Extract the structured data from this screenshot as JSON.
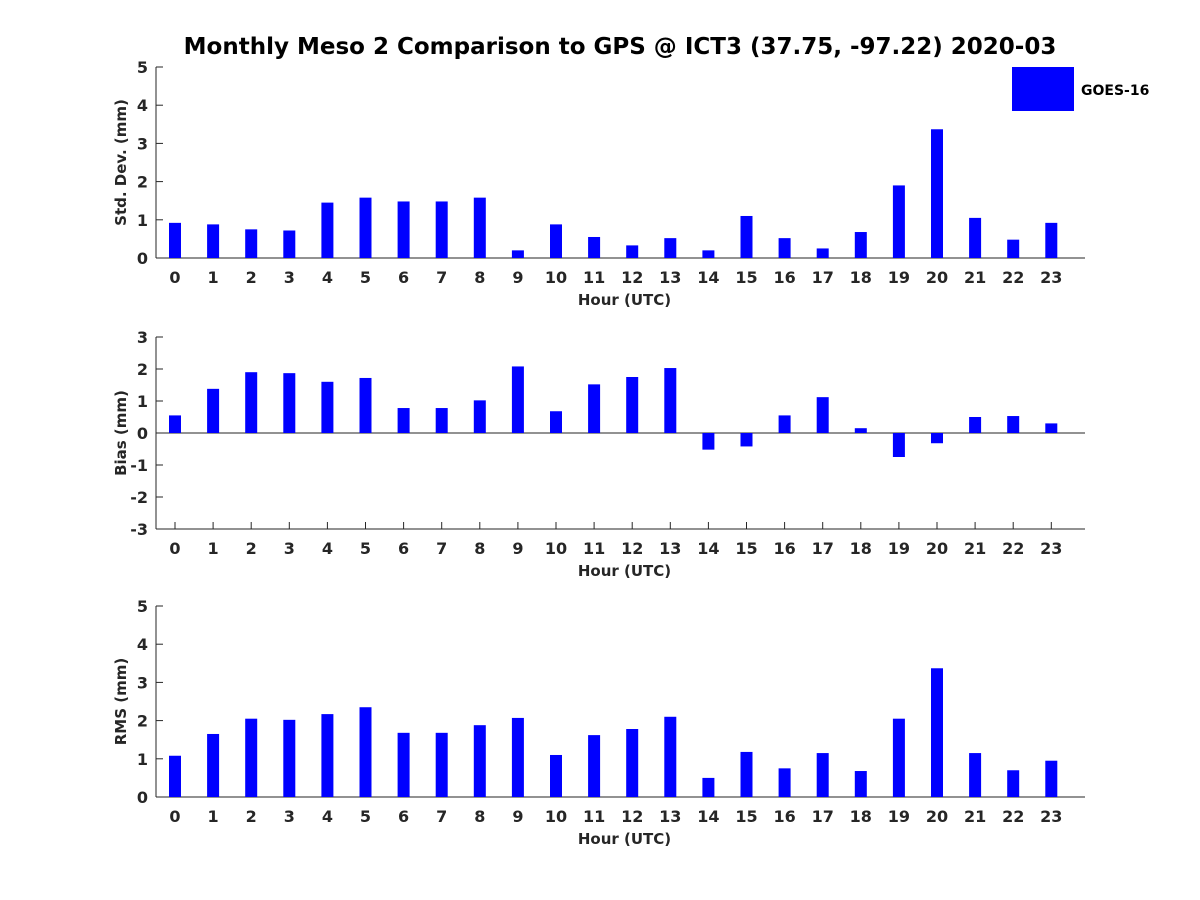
{
  "figure": {
    "title": "Monthly Meso 2 Comparison to GPS @ ICT3 (37.75, -97.22) 2020-03"
  },
  "legend": {
    "label": "GOES-16",
    "color": "#0000ff",
    "placement": "top-right"
  },
  "chart_data": [
    {
      "type": "bar",
      "name": "std-dev",
      "categories": [
        "0",
        "1",
        "2",
        "3",
        "4",
        "5",
        "6",
        "7",
        "8",
        "9",
        "10",
        "11",
        "12",
        "13",
        "14",
        "15",
        "16",
        "17",
        "18",
        "19",
        "20",
        "21",
        "22",
        "23"
      ],
      "series": [
        {
          "name": "GOES-16",
          "color": "#0000ff",
          "values": [
            0.92,
            0.88,
            0.75,
            0.72,
            1.45,
            1.58,
            1.48,
            1.48,
            1.58,
            0.2,
            0.88,
            0.55,
            0.33,
            0.52,
            0.2,
            1.1,
            0.52,
            0.25,
            0.68,
            1.9,
            3.37,
            1.05,
            0.48,
            0.92
          ]
        }
      ],
      "ylim": [
        0,
        5
      ],
      "yticks": [
        "0",
        "1",
        "2",
        "3",
        "4",
        "5"
      ],
      "xlabel": "Hour (UTC)",
      "ylabel": "Std. Dev. (mm)",
      "zero_line": false,
      "grid": false
    },
    {
      "type": "bar",
      "name": "bias",
      "categories": [
        "0",
        "1",
        "2",
        "3",
        "4",
        "5",
        "6",
        "7",
        "8",
        "9",
        "10",
        "11",
        "12",
        "13",
        "14",
        "15",
        "16",
        "17",
        "18",
        "19",
        "20",
        "21",
        "22",
        "23"
      ],
      "series": [
        {
          "name": "GOES-16",
          "color": "#0000ff",
          "values": [
            0.55,
            1.38,
            1.9,
            1.87,
            1.6,
            1.72,
            0.78,
            0.78,
            1.02,
            2.08,
            0.68,
            1.52,
            1.75,
            2.03,
            -0.52,
            -0.42,
            0.55,
            1.12,
            0.15,
            -0.75,
            -0.32,
            0.5,
            0.53,
            0.3
          ]
        }
      ],
      "ylim": [
        -3,
        3
      ],
      "yticks": [
        "-3",
        "-2",
        "-1",
        "0",
        "1",
        "2",
        "3"
      ],
      "xlabel": "Hour (UTC)",
      "ylabel": "Bias (mm)",
      "zero_line": true,
      "grid": false
    },
    {
      "type": "bar",
      "name": "rms",
      "categories": [
        "0",
        "1",
        "2",
        "3",
        "4",
        "5",
        "6",
        "7",
        "8",
        "9",
        "10",
        "11",
        "12",
        "13",
        "14",
        "15",
        "16",
        "17",
        "18",
        "19",
        "20",
        "21",
        "22",
        "23"
      ],
      "series": [
        {
          "name": "GOES-16",
          "color": "#0000ff",
          "values": [
            1.08,
            1.65,
            2.05,
            2.02,
            2.17,
            2.35,
            1.68,
            1.68,
            1.88,
            2.07,
            1.1,
            1.62,
            1.78,
            2.1,
            0.5,
            1.18,
            0.75,
            1.15,
            0.68,
            2.05,
            3.37,
            1.15,
            0.7,
            0.95
          ]
        }
      ],
      "ylim": [
        0,
        5
      ],
      "yticks": [
        "0",
        "1",
        "2",
        "3",
        "4",
        "5"
      ],
      "xlabel": "Hour (UTC)",
      "ylabel": "RMS (mm)",
      "zero_line": false,
      "grid": false
    }
  ]
}
